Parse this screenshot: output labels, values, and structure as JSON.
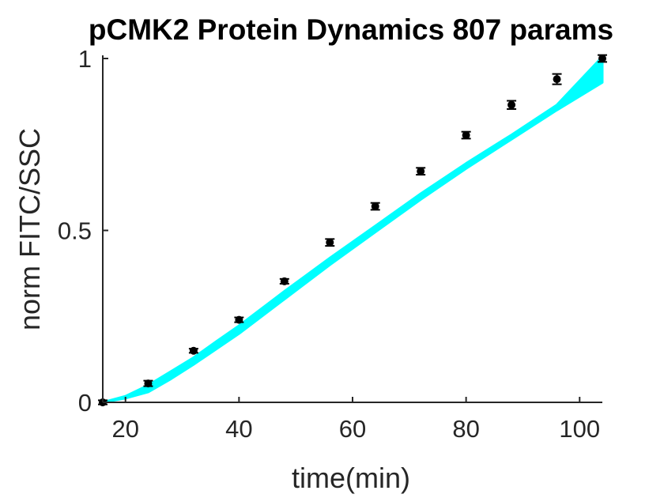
{
  "chart_data": {
    "type": "line",
    "title": "pCMK2 Protein Dynamics 807 params",
    "xlabel": "time(min)",
    "ylabel": "norm FITC/SSC",
    "xlim": [
      16,
      104
    ],
    "ylim": [
      0,
      1
    ],
    "xticks": [
      20,
      40,
      60,
      80,
      100
    ],
    "yticks": [
      0,
      0.5,
      1
    ],
    "ytick_labels": [
      "0",
      "0.5",
      "1"
    ],
    "grid": false,
    "colors": {
      "band": "#00FFFF",
      "points": "#000000",
      "axis": "#262626"
    },
    "series": [
      {
        "type": "band",
        "x": [
          16,
          20,
          24,
          28,
          32,
          36,
          40,
          48,
          56,
          64,
          72,
          80,
          88,
          96,
          104
        ],
        "lower": [
          0.0,
          0.012,
          0.03,
          0.068,
          0.11,
          0.155,
          0.2,
          0.3,
          0.4,
          0.495,
          0.59,
          0.68,
          0.765,
          0.85,
          0.93
        ],
        "upper": [
          0.0,
          0.018,
          0.05,
          0.09,
          0.13,
          0.177,
          0.223,
          0.323,
          0.42,
          0.513,
          0.607,
          0.695,
          0.778,
          0.865,
          1.005
        ]
      },
      {
        "type": "errorbar",
        "x": [
          16,
          24,
          32,
          40,
          48,
          56,
          64,
          72,
          80,
          88,
          96,
          104
        ],
        "y": [
          0.0,
          0.055,
          0.15,
          0.24,
          0.352,
          0.465,
          0.57,
          0.672,
          0.777,
          0.865,
          0.94,
          1.0
        ],
        "err": [
          0.005,
          0.008,
          0.006,
          0.007,
          0.007,
          0.01,
          0.01,
          0.01,
          0.01,
          0.012,
          0.015,
          0.01
        ]
      }
    ]
  }
}
